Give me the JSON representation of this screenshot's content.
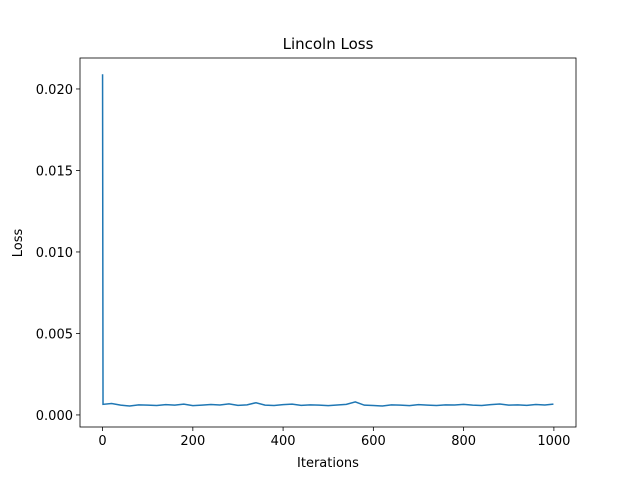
{
  "chart_data": {
    "type": "line",
    "title": "Lincoln Loss",
    "x_label": "Iterations",
    "y_label": "Loss",
    "x": [
      0,
      1,
      20,
      40,
      60,
      80,
      100,
      120,
      140,
      160,
      180,
      200,
      220,
      240,
      260,
      280,
      300,
      320,
      340,
      360,
      380,
      400,
      420,
      440,
      460,
      480,
      500,
      520,
      540,
      560,
      580,
      600,
      620,
      640,
      660,
      680,
      700,
      720,
      740,
      760,
      780,
      800,
      820,
      840,
      860,
      880,
      900,
      920,
      940,
      960,
      980,
      999
    ],
    "values": [
      0.0209,
      0.00065,
      0.0007,
      0.0006,
      0.00055,
      0.00062,
      0.0006,
      0.00058,
      0.00063,
      0.0006,
      0.00066,
      0.00057,
      0.0006,
      0.00064,
      0.00061,
      0.00068,
      0.00059,
      0.00062,
      0.00075,
      0.0006,
      0.00058,
      0.00063,
      0.00066,
      0.00059,
      0.00062,
      0.0006,
      0.00057,
      0.00061,
      0.00065,
      0.0008,
      0.0006,
      0.00058,
      0.00055,
      0.00062,
      0.0006,
      0.00057,
      0.00063,
      0.0006,
      0.00058,
      0.00062,
      0.00061,
      0.00065,
      0.0006,
      0.00058,
      0.00063,
      0.00067,
      0.0006,
      0.00062,
      0.00059,
      0.00064,
      0.00061,
      0.00066
    ],
    "color": "#1f77b4",
    "xlim": [
      -50,
      1049
    ],
    "xticks": [
      0,
      200,
      400,
      600,
      800,
      1000
    ],
    "ylim": [
      -0.00074,
      0.0219
    ],
    "yticks": [
      {
        "value": 0,
        "label": "0.000"
      },
      0.005,
      {
        "value": 0.01,
        "label": "0.010"
      },
      0.015,
      {
        "value": 0.02,
        "label": "0.020"
      }
    ],
    "grid": false
  }
}
